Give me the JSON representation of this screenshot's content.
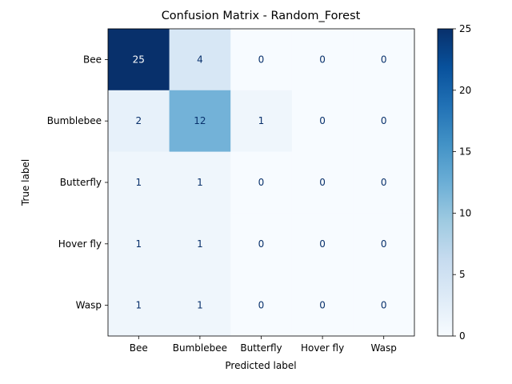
{
  "chart_data": {
    "type": "heatmap",
    "title": "Confusion Matrix - Random_Forest",
    "xlabel": "Predicted label",
    "ylabel": "True label",
    "x_categories": [
      "Bee",
      "Bumblebee",
      "Butterfly",
      "Hover fly",
      "Wasp"
    ],
    "y_categories": [
      "Bee",
      "Bumblebee",
      "Butterfly",
      "Hover fly",
      "Wasp"
    ],
    "values": [
      [
        25,
        4,
        0,
        0,
        0
      ],
      [
        2,
        12,
        1,
        0,
        0
      ],
      [
        1,
        1,
        0,
        0,
        0
      ],
      [
        1,
        1,
        0,
        0,
        0
      ],
      [
        1,
        1,
        0,
        0,
        0
      ]
    ],
    "colormap": "Blues",
    "colorbar": {
      "min": 0,
      "max": 25,
      "ticks": [
        0,
        5,
        10,
        15,
        20,
        25
      ]
    },
    "colors": {
      "low": "#f7fbff",
      "high": "#08306b",
      "text_dark": "#08306b",
      "text_light": "#ffffff"
    }
  }
}
